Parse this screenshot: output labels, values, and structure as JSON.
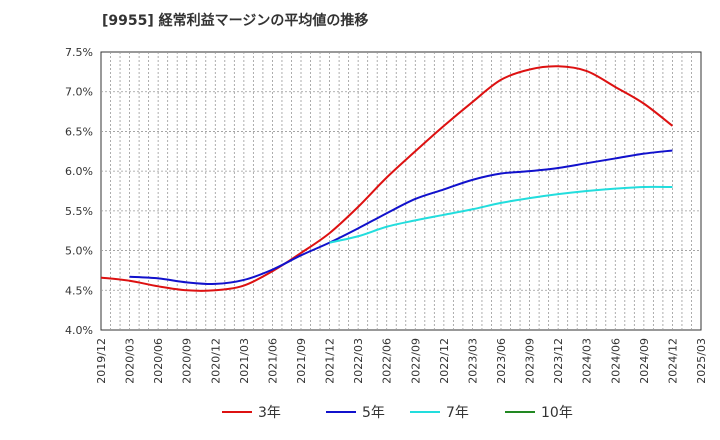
{
  "title": "[9955]  経常利益マージンの平均値の推移",
  "chart_data": {
    "type": "line",
    "title": "[9955]  経常利益マージンの平均値の推移",
    "x_tick_labels": [
      "2019/12",
      "2020/03",
      "2020/06",
      "2020/09",
      "2020/12",
      "2021/03",
      "2021/06",
      "2021/09",
      "2021/12",
      "2022/03",
      "2022/06",
      "2022/09",
      "2022/12",
      "2023/03",
      "2023/06",
      "2023/09",
      "2023/12",
      "2024/03",
      "2024/06",
      "2024/09",
      "2024/12",
      "2025/03"
    ],
    "y_tick_labels": [
      "4.0%",
      "4.5%",
      "5.0%",
      "5.5%",
      "6.0%",
      "6.5%",
      "7.0%",
      "7.5%"
    ],
    "ylim": [
      4.0,
      7.5
    ],
    "grid": true,
    "legend_position": "bottom",
    "series": [
      {
        "name": "3年",
        "color": "#dd1111",
        "x": [
          "2019/12",
          "2020/03",
          "2020/06",
          "2020/09",
          "2020/12",
          "2021/03",
          "2021/06",
          "2021/09",
          "2021/12",
          "2022/03",
          "2022/06",
          "2022/09",
          "2022/12",
          "2023/03",
          "2023/06",
          "2023/09",
          "2023/12",
          "2024/03",
          "2024/06",
          "2024/09",
          "2024/12"
        ],
        "values": [
          4.66,
          4.62,
          4.55,
          4.5,
          4.5,
          4.56,
          4.74,
          4.97,
          5.22,
          5.55,
          5.92,
          6.25,
          6.57,
          6.87,
          7.15,
          7.28,
          7.32,
          7.26,
          7.06,
          6.85,
          6.57
        ]
      },
      {
        "name": "5年",
        "color": "#1111cc",
        "x": [
          "2020/03",
          "2020/06",
          "2020/09",
          "2020/12",
          "2021/03",
          "2021/06",
          "2021/09",
          "2021/12",
          "2022/03",
          "2022/06",
          "2022/09",
          "2022/12",
          "2023/03",
          "2023/06",
          "2023/09",
          "2023/12",
          "2024/03",
          "2024/06",
          "2024/09",
          "2024/12"
        ],
        "values": [
          4.67,
          4.65,
          4.6,
          4.58,
          4.63,
          4.76,
          4.94,
          5.1,
          5.28,
          5.47,
          5.65,
          5.77,
          5.89,
          5.97,
          6.0,
          6.04,
          6.1,
          6.16,
          6.22,
          6.26
        ]
      },
      {
        "name": "7年",
        "color": "#22dddd",
        "x": [
          "2021/12",
          "2022/03",
          "2022/06",
          "2022/09",
          "2022/12",
          "2023/03",
          "2023/06",
          "2023/09",
          "2023/12",
          "2024/03",
          "2024/06",
          "2024/09",
          "2024/12"
        ],
        "values": [
          5.1,
          5.18,
          5.3,
          5.38,
          5.45,
          5.52,
          5.6,
          5.66,
          5.71,
          5.75,
          5.78,
          5.8,
          5.8
        ]
      },
      {
        "name": "10年",
        "color": "#228822",
        "x": [],
        "values": []
      }
    ]
  }
}
